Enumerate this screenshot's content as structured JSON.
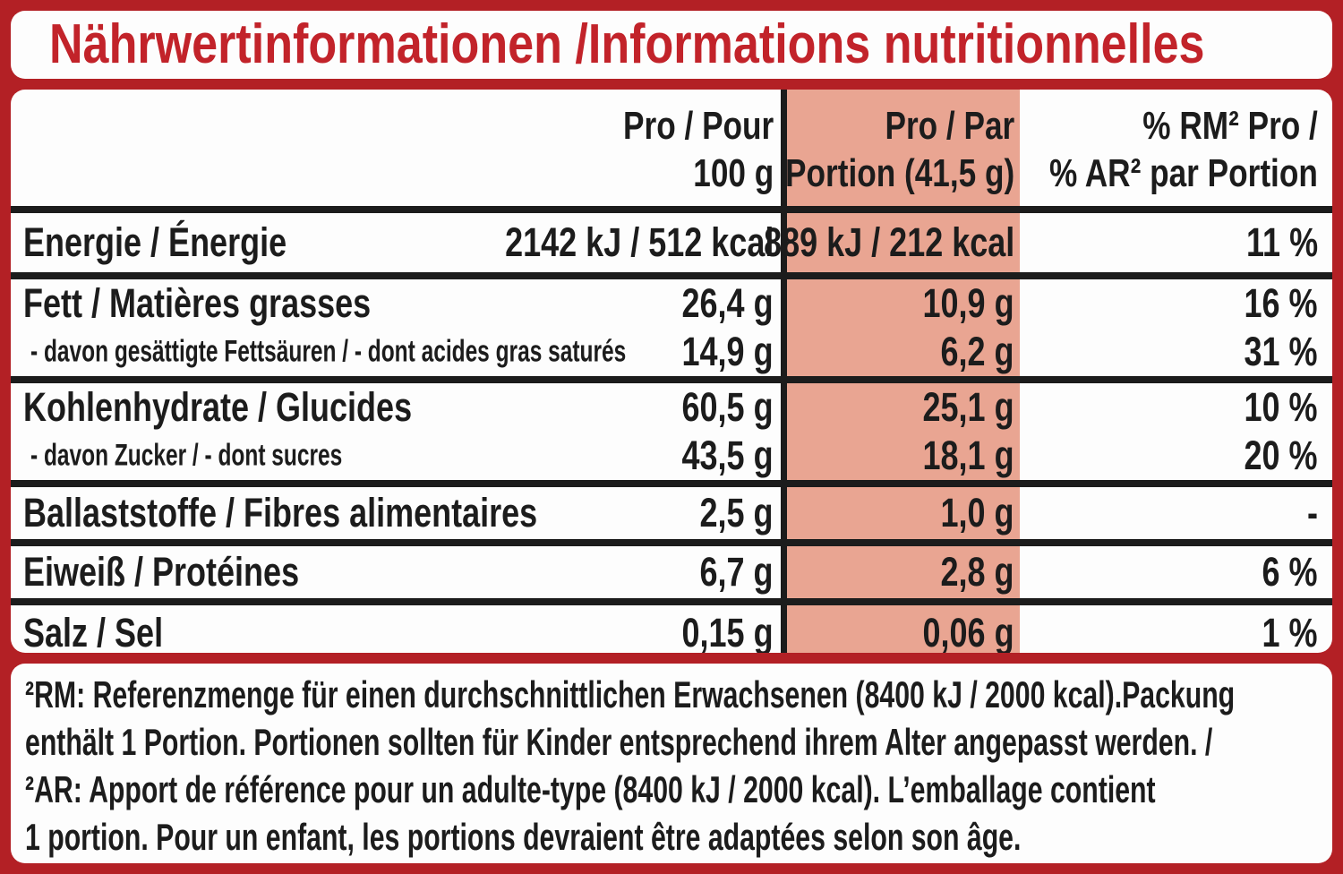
{
  "title": "Nährwertinformationen /Informations nutritionnelles",
  "colors": {
    "frame-red": "#b32025",
    "title-red": "#c2232a",
    "highlight": "#e9a592"
  },
  "table": {
    "header": {
      "per100": [
        "Pro / Pour",
        "100 g"
      ],
      "portion": [
        "Pro / Par",
        "Portion (41,5 g)"
      ],
      "rm": [
        "% RM² Pro /",
        "% AR² par Portion"
      ]
    },
    "rows": [
      {
        "label": "Energie / Énergie",
        "per100": "2142 kJ / 512 kcal",
        "portion": "889 kJ / 212 kcal",
        "rm": "11 %"
      },
      {
        "label": "Fett / Matières grasses",
        "per100": "26,4 g",
        "portion": "10,9 g",
        "rm": "16 %"
      },
      {
        "label": "- davon gesättigte Fettsäuren / - dont acides gras saturés",
        "per100": "14,9 g",
        "portion": "6,2 g",
        "rm": "31 %"
      },
      {
        "label": "Kohlenhydrate / Glucides",
        "per100": "60,5 g",
        "portion": "25,1 g",
        "rm": "10 %"
      },
      {
        "label": "- davon Zucker / - dont sucres",
        "per100": "43,5 g",
        "portion": "18,1 g",
        "rm": "20 %"
      },
      {
        "label": "Ballaststoffe / Fibres alimentaires",
        "per100": "2,5 g",
        "portion": "1,0 g",
        "rm": "-"
      },
      {
        "label": "Eiweiß / Protéines",
        "per100": "6,7 g",
        "portion": "2,8 g",
        "rm": "6 %"
      },
      {
        "label": "Salz / Sel",
        "per100": "0,15 g",
        "portion": "0,06 g",
        "rm": "1 %"
      }
    ]
  },
  "footnote": {
    "lines": [
      "²RM: Referenzmenge für einen durchschnittlichen Erwachsenen (8400 kJ / 2000 kcal).Packung",
      "enthält 1 Portion. Portionen sollten für Kinder entsprechend ihrem Alter angepasst werden. /",
      "²AR: Apport de référence pour un adulte-type (8400 kJ / 2000 kcal). L’emballage contient",
      "1 portion. Pour un enfant, les portions devraient être adaptées selon son âge."
    ]
  }
}
